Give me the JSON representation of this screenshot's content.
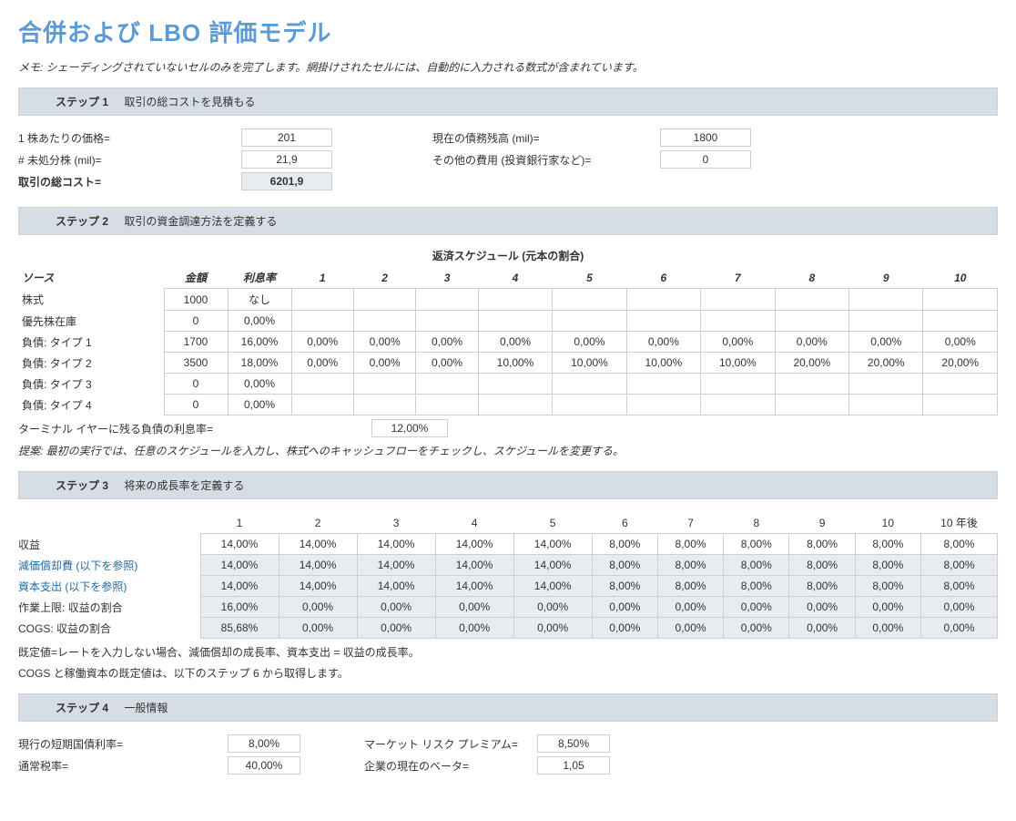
{
  "title": "合併および LBO 評価モデル",
  "memo": "メモ: シェーディングされていないセルのみを完了します。網掛けされたセルには、自動的に入力される数式が含まれています。",
  "steps": {
    "s1": {
      "label": "ステップ 1",
      "desc": "取引の総コストを見積もる"
    },
    "s2": {
      "label": "ステップ 2",
      "desc": "取引の資金調達方法を定義する"
    },
    "s3": {
      "label": "ステップ 3",
      "desc": "将来の成長率を定義する"
    },
    "s4": {
      "label": "ステップ 4",
      "desc": "一般情報"
    }
  },
  "step1": {
    "price_per_share_label": "1 株あたりの価格=",
    "price_per_share": "201",
    "outstanding_label": "# 未処分株 (mil)=",
    "outstanding": "21,9",
    "total_cost_label": "取引の総コスト=",
    "total_cost": "6201,9",
    "debt_label": "現在の債務残高 (mil)=",
    "debt": "1800",
    "other_label": "その他の費用 (投資銀行家など)=",
    "other": "0"
  },
  "step2": {
    "schedule_header": "返済スケジュール (元本の割合)",
    "col_source": "ソース",
    "col_amount": "金額",
    "col_rate": "利息率",
    "years": [
      "1",
      "2",
      "3",
      "4",
      "5",
      "6",
      "7",
      "8",
      "9",
      "10"
    ],
    "rows": [
      {
        "label": "株式",
        "amount": "1000",
        "rate": "なし",
        "sched": [
          "",
          "",
          "",
          "",
          "",
          "",
          "",
          "",
          "",
          ""
        ]
      },
      {
        "label": "優先株在庫",
        "amount": "0",
        "rate": "0,00%",
        "sched": [
          "",
          "",
          "",
          "",
          "",
          "",
          "",
          "",
          "",
          ""
        ]
      },
      {
        "label": "負債: タイプ 1",
        "amount": "1700",
        "rate": "16,00%",
        "sched": [
          "0,00%",
          "0,00%",
          "0,00%",
          "0,00%",
          "0,00%",
          "0,00%",
          "0,00%",
          "0,00%",
          "0,00%",
          "0,00%"
        ]
      },
      {
        "label": "負債: タイプ 2",
        "amount": "3500",
        "rate": "18,00%",
        "sched": [
          "0,00%",
          "0,00%",
          "0,00%",
          "10,00%",
          "10,00%",
          "10,00%",
          "10,00%",
          "20,00%",
          "20,00%",
          "20,00%"
        ]
      },
      {
        "label": "負債: タイプ 3",
        "amount": "0",
        "rate": "0,00%",
        "sched": [
          "",
          "",
          "",
          "",
          "",
          "",
          "",
          "",
          "",
          ""
        ]
      },
      {
        "label": "負債: タイプ 4",
        "amount": "0",
        "rate": "0,00%",
        "sched": [
          "",
          "",
          "",
          "",
          "",
          "",
          "",
          "",
          "",
          ""
        ]
      }
    ],
    "terminal_label": "ターミナル イヤーに残る負債の利息率=",
    "terminal_rate": "12,00%",
    "suggestion": "提案: 最初の実行では、任意のスケジュールを入力し、株式へのキャッシュフローをチェックし、スケジュールを変更する。"
  },
  "step3": {
    "years": [
      "1",
      "2",
      "3",
      "4",
      "5",
      "6",
      "7",
      "8",
      "9",
      "10",
      "10 年後"
    ],
    "rows": [
      {
        "label": "収益",
        "vals": [
          "14,00%",
          "14,00%",
          "14,00%",
          "14,00%",
          "14,00%",
          "8,00%",
          "8,00%",
          "8,00%",
          "8,00%",
          "8,00%",
          "8,00%"
        ],
        "shaded": [
          0,
          0,
          0,
          0,
          0,
          0,
          0,
          0,
          0,
          0,
          0
        ]
      },
      {
        "label": "減価償却費 (以下を参照)",
        "blue": true,
        "vals": [
          "14,00%",
          "14,00%",
          "14,00%",
          "14,00%",
          "14,00%",
          "8,00%",
          "8,00%",
          "8,00%",
          "8,00%",
          "8,00%",
          "8,00%"
        ],
        "shaded": [
          1,
          1,
          1,
          1,
          1,
          1,
          1,
          1,
          1,
          1,
          1
        ]
      },
      {
        "label": "資本支出 (以下を参照)",
        "blue": true,
        "vals": [
          "14,00%",
          "14,00%",
          "14,00%",
          "14,00%",
          "14,00%",
          "8,00%",
          "8,00%",
          "8,00%",
          "8,00%",
          "8,00%",
          "8,00%"
        ],
        "shaded": [
          1,
          1,
          1,
          1,
          1,
          1,
          1,
          1,
          1,
          1,
          1
        ]
      },
      {
        "label": "作業上限: 収益の割合",
        "vals": [
          "16,00%",
          "0,00%",
          "0,00%",
          "0,00%",
          "0,00%",
          "0,00%",
          "0,00%",
          "0,00%",
          "0,00%",
          "0,00%",
          "0,00%"
        ],
        "shaded": [
          1,
          1,
          1,
          1,
          1,
          1,
          1,
          1,
          1,
          1,
          1
        ]
      },
      {
        "label": "COGS: 収益の割合",
        "vals": [
          "85,68%",
          "0,00%",
          "0,00%",
          "0,00%",
          "0,00%",
          "0,00%",
          "0,00%",
          "0,00%",
          "0,00%",
          "0,00%",
          "0,00%"
        ],
        "shaded": [
          1,
          1,
          1,
          1,
          1,
          1,
          1,
          1,
          1,
          1,
          1
        ]
      }
    ],
    "note1": "既定値=レートを入力しない場合、減価償却の成長率、資本支出 = 収益の成長率。",
    "note2": "COGS と稼働資本の既定値は、以下のステップ 6 から取得します。"
  },
  "step4": {
    "tbill_label": "現行の短期国債利率=",
    "tbill": "8,00%",
    "tax_label": "通常税率=",
    "tax": "40,00%",
    "premium_label": "マーケット リスク プレミアム=",
    "premium": "8,50%",
    "beta_label": "企業の現在のベータ=",
    "beta": "1,05"
  }
}
